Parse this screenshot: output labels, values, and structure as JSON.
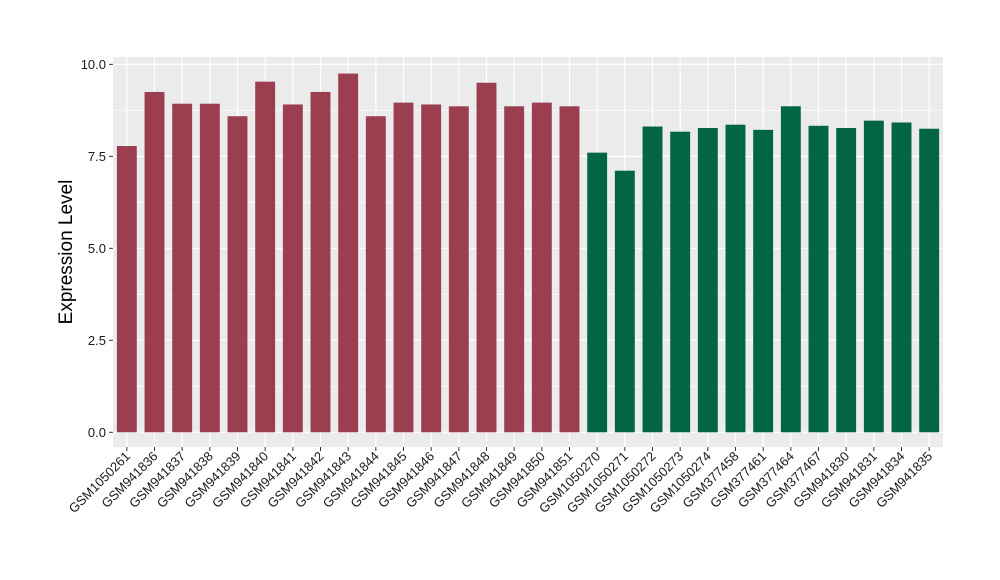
{
  "chart_data": {
    "type": "bar",
    "ylabel": "Expression Level",
    "xlabel": "",
    "ylim": [
      -0.4,
      10.2
    ],
    "y_ticks": [
      "0.0",
      "2.5",
      "5.0",
      "7.5",
      "10.0"
    ],
    "grid": true,
    "legend": "none",
    "categories": [
      "GSM1050261",
      "GSM941836",
      "GSM941837",
      "GSM941838",
      "GSM941839",
      "GSM941840",
      "GSM941841",
      "GSM941842",
      "GSM941843",
      "GSM941844",
      "GSM941845",
      "GSM941846",
      "GSM941847",
      "GSM941848",
      "GSM941849",
      "GSM941850",
      "GSM941851",
      "GSM1050270",
      "GSM1050271",
      "GSM1050272",
      "GSM1050273",
      "GSM1050274",
      "GSM377458",
      "GSM377461",
      "GSM377464",
      "GSM377467",
      "GSM941830",
      "GSM941831",
      "GSM941834",
      "GSM941835"
    ],
    "values": [
      7.78,
      9.25,
      8.93,
      8.93,
      8.59,
      9.53,
      8.91,
      9.25,
      9.75,
      8.59,
      8.96,
      8.91,
      8.86,
      9.5,
      8.86,
      8.96,
      8.86,
      7.6,
      7.11,
      8.31,
      8.17,
      8.27,
      8.36,
      8.22,
      8.86,
      8.33,
      8.27,
      8.47,
      8.42,
      8.25
    ],
    "group_sizes": [
      17,
      13
    ],
    "colors": [
      "#9b3f50",
      "#026645"
    ],
    "panel_background": "#ebebeb",
    "grid_color": "#ffffff"
  }
}
